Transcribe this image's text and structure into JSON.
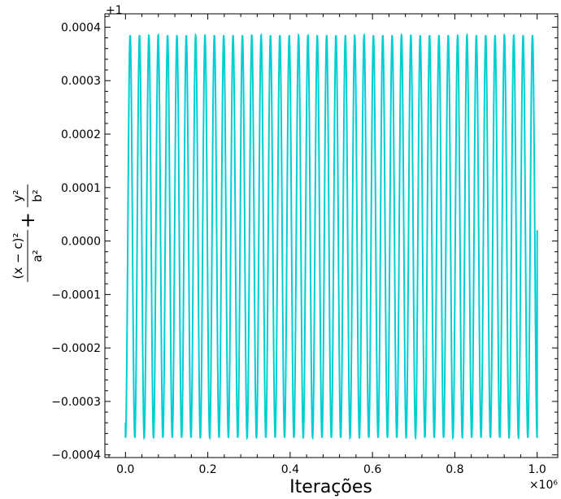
{
  "chart_data": {
    "type": "line",
    "xlabel": "Iterações",
    "ylabel": {
      "term1_numerator": "(x − c)²",
      "term1_denominator": "a²",
      "plus": "+",
      "term2_numerator": "y²",
      "term2_denominator": "b²"
    },
    "y_offset_text": "+1",
    "x_multiplier_text": "×10⁶",
    "xlim": [
      -0.05,
      1.05
    ],
    "ylim": [
      -0.000405,
      0.000425
    ],
    "x_ticks": [
      0.0,
      0.2,
      0.4,
      0.6,
      0.8,
      1.0
    ],
    "x_tick_labels": [
      "0.0",
      "0.2",
      "0.4",
      "0.6",
      "0.8",
      "1.0"
    ],
    "y_ticks": [
      -0.0004,
      -0.0003,
      -0.0002,
      -0.0001,
      0.0,
      0.0001,
      0.0002,
      0.0003,
      0.0004
    ],
    "y_tick_labels": [
      "−0.0004",
      "−0.0003",
      "−0.0002",
      "−0.0001",
      "0.0000",
      "0.0001",
      "0.0002",
      "0.0003",
      "0.0004"
    ],
    "grid": false,
    "series": [
      {
        "color": "#00CED1",
        "oscillation": {
          "x_start": 0.0,
          "x_end": 1.0,
          "cycles": 44,
          "y_max": 0.000385,
          "y_min": -0.000368,
          "y_start": -0.00034,
          "y_end": 2e-05
        }
      }
    ]
  }
}
